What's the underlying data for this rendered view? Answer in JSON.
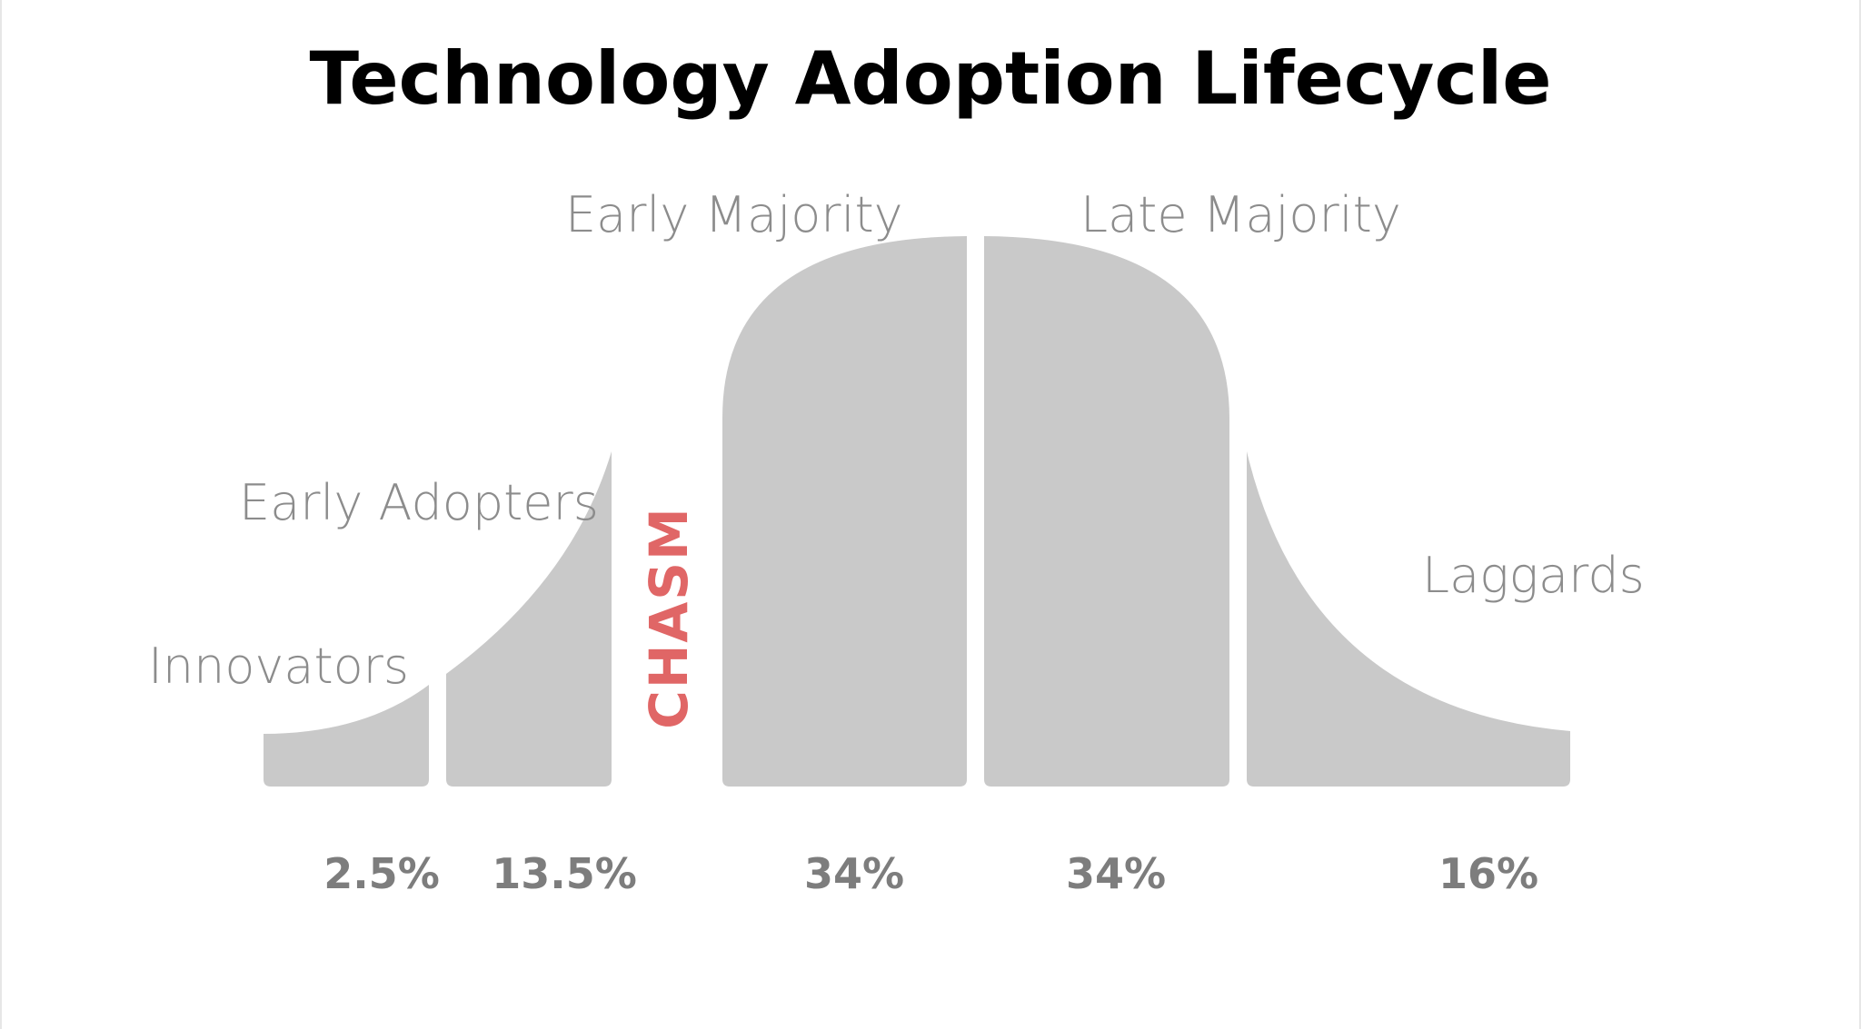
{
  "title": "Technology Adoption Lifecycle",
  "chasm_label": "CHASM",
  "colors": {
    "segment_fill": "#c9c9c9",
    "chasm": "#e06666",
    "title": "#000000"
  },
  "chart_data": {
    "type": "area",
    "title": "Technology Adoption Lifecycle",
    "segments": [
      {
        "name": "Innovators",
        "percent": "2.5%",
        "value": 2.5
      },
      {
        "name": "Early Adopters",
        "percent": "13.5%",
        "value": 13.5
      },
      {
        "name": "Early Majority",
        "percent": "34%",
        "value": 34
      },
      {
        "name": "Late Majority",
        "percent": "34%",
        "value": 34
      },
      {
        "name": "Laggards",
        "percent": "16%",
        "value": 16
      }
    ],
    "gap_annotation": "CHASM"
  }
}
